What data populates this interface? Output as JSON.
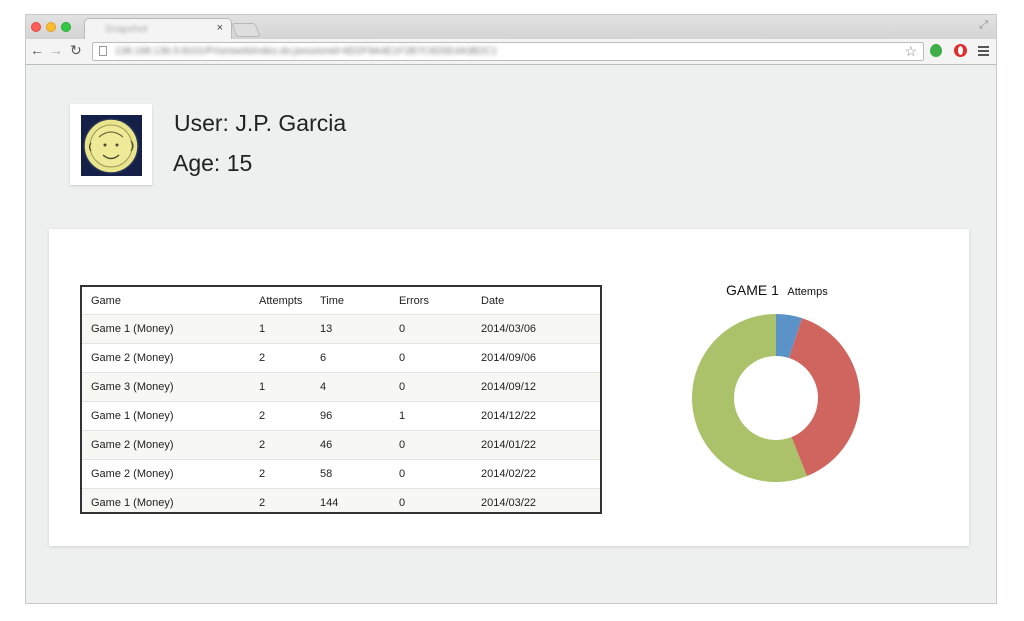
{
  "browser": {
    "tab_title": "Snapshot",
    "tab_close": "×",
    "url": "138.198.136.5:8101/Prismweb/index.do;jsessionid=8D2F9A4E1F2B7C6D5E4A3B2C1",
    "icons": {
      "back": "back-arrow-icon",
      "forward": "forward-arrow-icon",
      "reload": "reload-icon",
      "page": "page-icon",
      "star": "star-icon",
      "extension_green": "green-extension-icon",
      "extension_red": "opera-extension-icon",
      "menu": "hamburger-menu-icon",
      "fullscreen": "fullscreen-icon"
    }
  },
  "profile": {
    "user_text": "User: J.P. Garcia",
    "age_text": "Age: 15",
    "avatar_icon": "astronaut-avatar"
  },
  "table": {
    "headers": [
      "Game",
      "Attempts",
      "Time",
      "Errors",
      "Date"
    ],
    "rows": [
      [
        "Game 1 (Money)",
        "1",
        "13",
        "0",
        "2014/03/06"
      ],
      [
        "Game 2 (Money)",
        "2",
        "6",
        "0",
        "2014/09/06"
      ],
      [
        "Game 3 (Money)",
        "1",
        "4",
        "0",
        "2014/09/12"
      ],
      [
        "Game 1 (Money)",
        "2",
        "96",
        "1",
        "2014/12/22"
      ],
      [
        "Game 2 (Money)",
        "2",
        "46",
        "0",
        "2014/01/22"
      ],
      [
        "Game 2 (Money)",
        "2",
        "58",
        "0",
        "2014/02/22"
      ],
      [
        "Game 1 (Money)",
        "2",
        "144",
        "0",
        "2014/03/22"
      ]
    ]
  },
  "chart_title": "GAME 1",
  "chart_subtitle": "Attemps",
  "chart_data": {
    "type": "pie",
    "title": "GAME 1",
    "subtitle": "Attemps",
    "donut": true,
    "slices": [
      {
        "value": 5,
        "color": "#5b93c9"
      },
      {
        "value": 39,
        "color": "#d0655f"
      },
      {
        "value": 56,
        "color": "#abc26a"
      }
    ]
  }
}
